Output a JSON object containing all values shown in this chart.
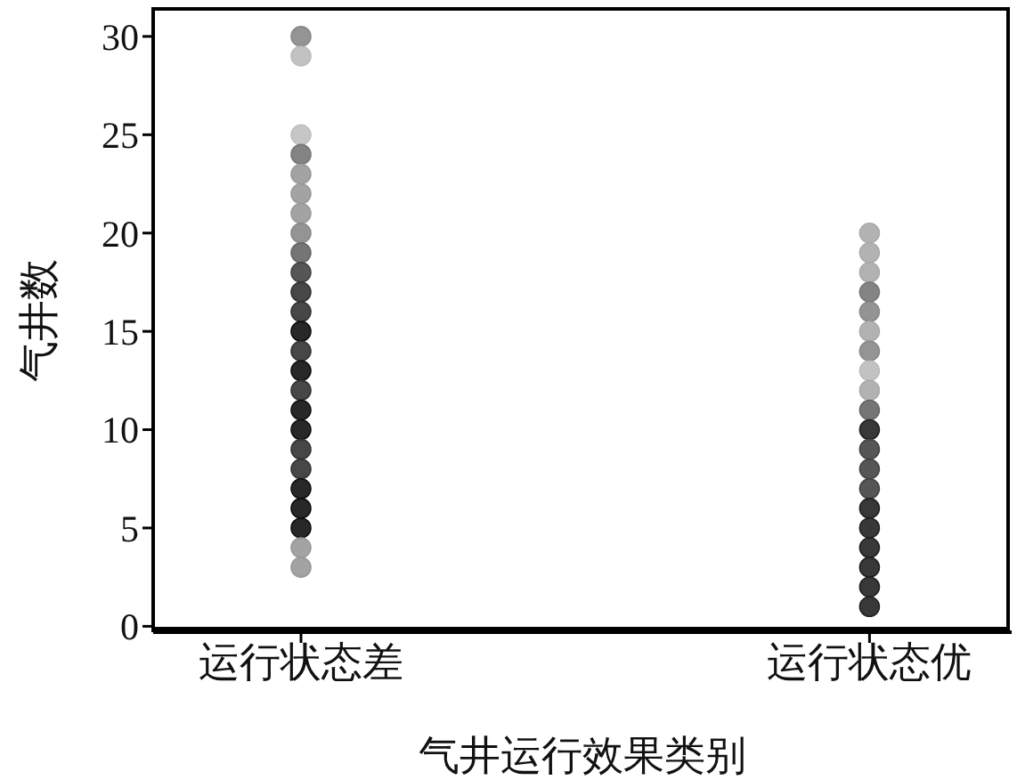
{
  "chart_data": {
    "type": "scatter",
    "xlabel": "气井运行效果类别",
    "ylabel": "气井数",
    "categories": [
      "运行状态差",
      "运行状态优"
    ],
    "series": [
      {
        "x": [
          "运行状态差",
          "运行状态差",
          "运行状态差",
          "运行状态差",
          "运行状态差",
          "运行状态差",
          "运行状态差",
          "运行状态差",
          "运行状态差",
          "运行状态差",
          "运行状态差",
          "运行状态差",
          "运行状态差",
          "运行状态差",
          "运行状态差",
          "运行状态差",
          "运行状态差",
          "运行状态差",
          "运行状态差",
          "运行状态差",
          "运行状态差",
          "运行状态差",
          "运行状态差",
          "运行状态差",
          "运行状态差"
        ],
        "values": [
          30,
          29,
          25,
          24,
          23,
          22,
          21,
          20,
          19,
          18,
          17,
          16,
          15,
          14,
          13,
          12,
          11,
          10,
          9,
          8,
          7,
          6,
          5,
          4,
          3
        ],
        "colors": [
          "#888888",
          "#bbbbbb",
          "#c0c0c0",
          "#777777",
          "#999999",
          "#999999",
          "#999999",
          "#888888",
          "#666666",
          "#444444",
          "#333333",
          "#333333",
          "#111111",
          "#333333",
          "#111111",
          "#333333",
          "#111111",
          "#111111",
          "#333333",
          "#333333",
          "#111111",
          "#111111",
          "#111111",
          "#999999",
          "#999999"
        ]
      },
      {
        "x": [
          "运行状态优",
          "运行状态优",
          "运行状态优",
          "运行状态优",
          "运行状态优",
          "运行状态优",
          "运行状态优",
          "运行状态优",
          "运行状态优",
          "运行状态优",
          "运行状态优",
          "运行状态优",
          "运行状态优",
          "运行状态优",
          "运行状态优",
          "运行状态优",
          "运行状态优",
          "运行状态优",
          "运行状态优",
          "运行状态优"
        ],
        "values": [
          20,
          19,
          18,
          17,
          16,
          15,
          14,
          13,
          12,
          11,
          10,
          9,
          8,
          7,
          6,
          5,
          4,
          3,
          2,
          1
        ],
        "colors": [
          "#aaaaaa",
          "#aaaaaa",
          "#aaaaaa",
          "#777777",
          "#888888",
          "#aaaaaa",
          "#888888",
          "#bbbbbb",
          "#aaaaaa",
          "#666666",
          "#222222",
          "#444444",
          "#444444",
          "#444444",
          "#222222",
          "#222222",
          "#222222",
          "#222222",
          "#222222",
          "#222222"
        ]
      }
    ],
    "ylim": [
      -0.3,
      31.4
    ],
    "yticks": [
      0,
      5,
      10,
      15,
      20,
      25,
      30
    ],
    "grid": false,
    "legend": false,
    "marker": "circle"
  }
}
